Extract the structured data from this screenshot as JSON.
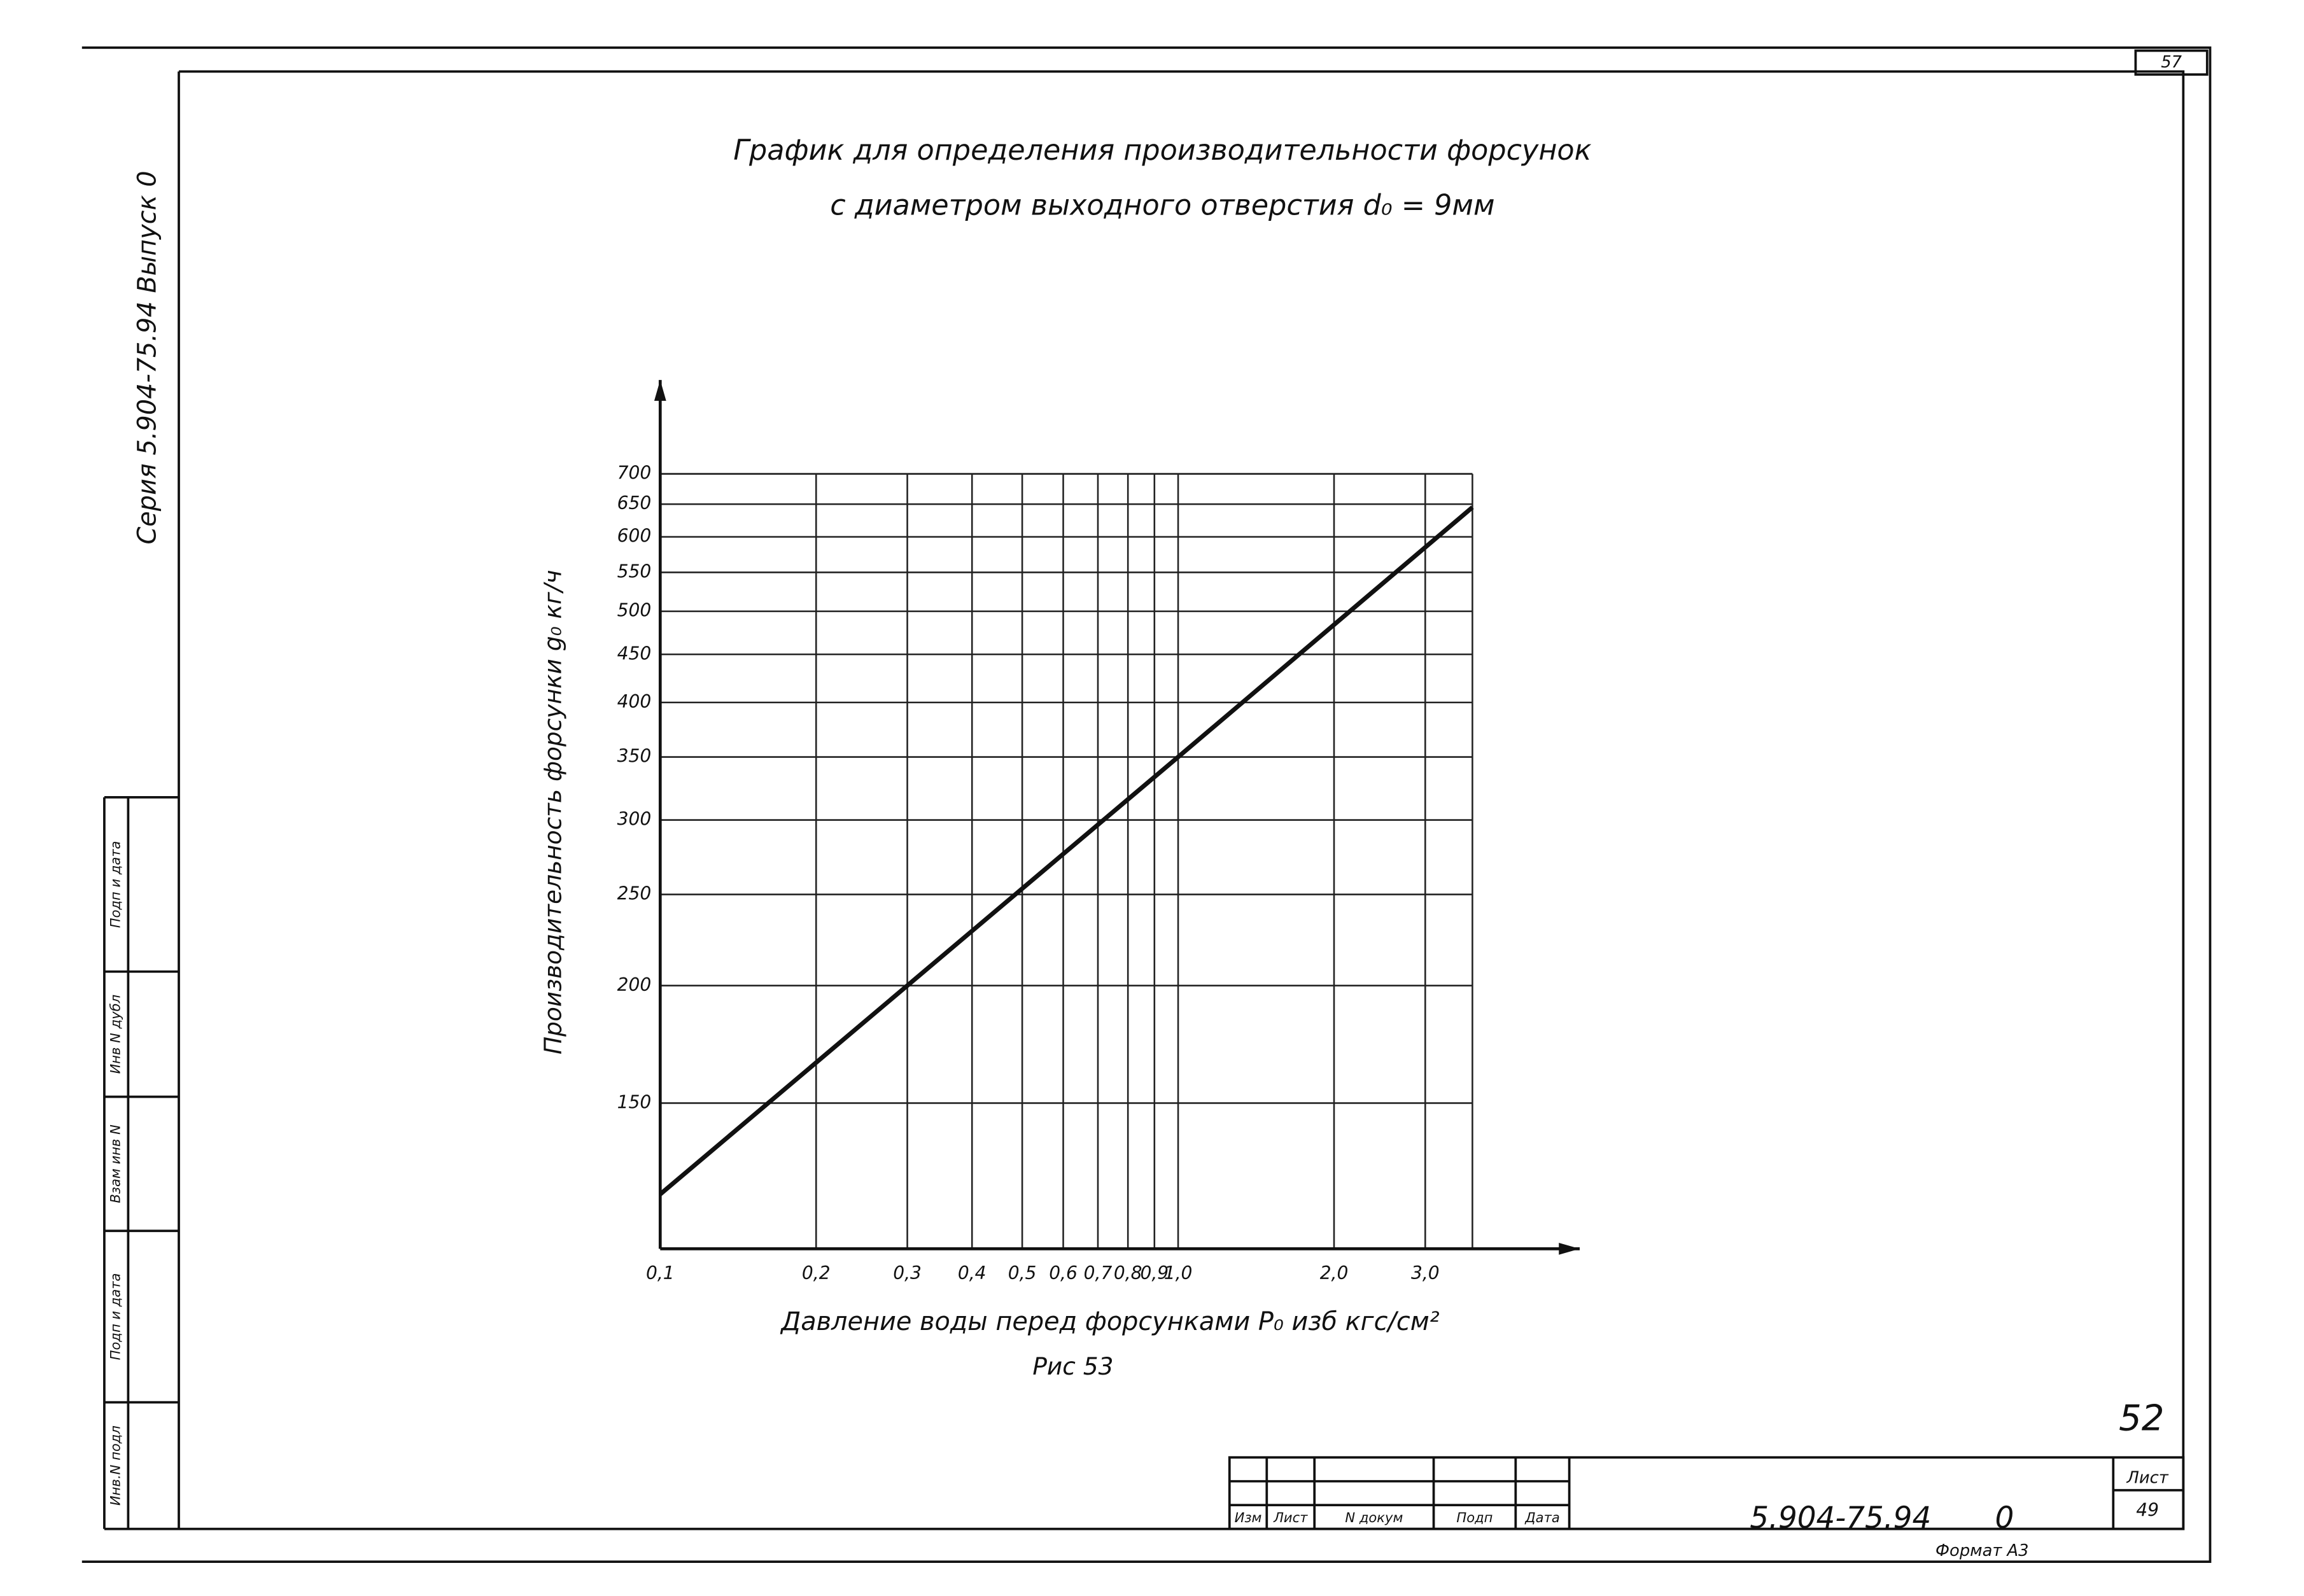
{
  "chart_data": {
    "type": "line",
    "title": "График для определения производительности форсунок",
    "subtitle": "с диаметром выходного отверстия d₀ = 9мм",
    "x_label": "Давление воды перед форсунками P₀ изб кгс/см²",
    "y_label": "Производительность форсунки g₀ кг/ч",
    "caption": "Рис 53",
    "xscale": "log",
    "yscale": "log",
    "grid": true,
    "x": [
      0.1,
      0.3,
      1.0,
      3.7
    ],
    "series": [
      {
        "color": "#111111",
        "values": [
          120,
          200,
          350,
          645
        ]
      }
    ],
    "xlim": [
      0.1,
      3.7
    ],
    "ylim": [
      105,
      700
    ],
    "xticks": [
      {
        "value": 0.1,
        "label": "0,1"
      },
      {
        "value": 0.2,
        "label": "0,2"
      },
      {
        "value": 0.3,
        "label": "0,3"
      },
      {
        "value": 0.4,
        "label": "0,4"
      },
      {
        "value": 0.5,
        "label": "0,5"
      },
      {
        "value": 0.6,
        "label": "0,6"
      },
      {
        "value": 0.7,
        "label": "0,7"
      },
      {
        "value": 0.8,
        "label": "0,8"
      },
      {
        "value": 0.9,
        "label": "0,9"
      },
      {
        "value": 1.0,
        "label": "1,0"
      },
      {
        "value": 2.0,
        "label": "2,0"
      },
      {
        "value": 3.0,
        "label": "3,0"
      }
    ],
    "yticks": [
      150,
      200,
      250,
      300,
      350,
      400,
      450,
      500,
      550,
      600,
      650,
      700
    ]
  },
  "side_stamp": "Серия 5.904-75.94   Выпуск 0",
  "side_columns": [
    "Инв.N подл",
    "Подп и дата",
    "Взам инв N",
    "Инв N дубл",
    "Подп и дата"
  ],
  "sheet_corner": "57",
  "page_number": "52",
  "title_block": {
    "headers": [
      "Изм",
      "Лист",
      "N докум",
      "Подп",
      "Дата"
    ],
    "designation": "5.904-75.94",
    "issue": "0",
    "sheet_label": "Лист",
    "sheet": "49",
    "format": "Формат А3"
  }
}
